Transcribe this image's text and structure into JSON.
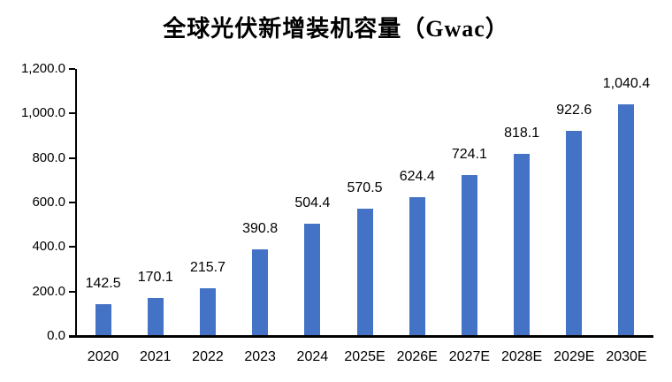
{
  "title": "全球光伏新增装机容量（Gwac）",
  "chart_data": {
    "type": "bar",
    "title": "全球光伏新增装机容量（Gwac）",
    "categories": [
      "2020",
      "2021",
      "2022",
      "2023",
      "2024",
      "2025E",
      "2026E",
      "2027E",
      "2028E",
      "2029E",
      "2030E"
    ],
    "values": [
      142.5,
      170.1,
      215.7,
      390.8,
      504.4,
      570.5,
      624.4,
      724.1,
      818.1,
      922.6,
      1040.4
    ],
    "value_labels": [
      "142.5",
      "170.1",
      "215.7",
      "390.8",
      "504.4",
      "570.5",
      "624.4",
      "724.1",
      "818.1",
      "922.6",
      "1,040.4"
    ],
    "xlabel": "",
    "ylabel": "",
    "ylim": [
      0,
      1200
    ],
    "yticks": [
      0,
      200,
      400,
      600,
      800,
      1000,
      1200
    ],
    "ytick_labels": [
      "0.0",
      "200.0",
      "400.0",
      "600.0",
      "800.0",
      "1,000.0",
      "1,200.0"
    ],
    "grid": false,
    "legend_position": "none",
    "bar_color": "#4472C4"
  },
  "colors": {
    "bar": "#4472C4",
    "axis": "#000000",
    "text": "#000000",
    "background": "#FFFFFF"
  }
}
